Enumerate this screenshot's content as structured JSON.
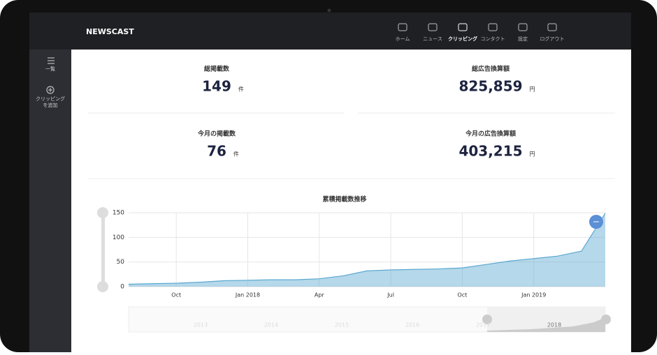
{
  "header": {
    "brand": "NEWSCAST",
    "nav": [
      "ホーム",
      "ニュース",
      "クリッピング",
      "コンタクト",
      "設定",
      "ログアウト"
    ],
    "active": 2
  },
  "sidebar": {
    "items": [
      [
        "一覧"
      ],
      [
        "クリッピング",
        "を追加"
      ]
    ]
  },
  "stats": [
    {
      "label": "総掲載数",
      "value": "149",
      "unit": "件"
    },
    {
      "label": "総広告換算額",
      "value": "825,859",
      "unit": "円"
    },
    {
      "label": "今月の掲載数",
      "value": "76",
      "unit": "件"
    },
    {
      "label": "今月の広告換算額",
      "value": "403,215",
      "unit": "円"
    }
  ],
  "chart_data": {
    "type": "area",
    "title": "累積掲載数推移",
    "categories": [
      null,
      null,
      "Oct",
      null,
      null,
      "Jan 2018",
      null,
      null,
      "Apr",
      null,
      null,
      "Jul",
      null,
      null,
      "Oct",
      null,
      null,
      "Jan 2019",
      null,
      null,
      null
    ],
    "series": [
      {
        "color": "#5aa8d0",
        "values": [
          5,
          6,
          7,
          9,
          12,
          13,
          14,
          14,
          16,
          22,
          32,
          34,
          35,
          36,
          38,
          45,
          52,
          57,
          62,
          72,
          149
        ]
      }
    ],
    "ylim": [
      0,
      150
    ],
    "yticks": [
      0,
      50,
      100,
      150
    ],
    "grid": true,
    "navigator_labels": [
      "2013",
      "2014",
      "2015",
      "2016",
      "2017",
      "2018"
    ]
  }
}
